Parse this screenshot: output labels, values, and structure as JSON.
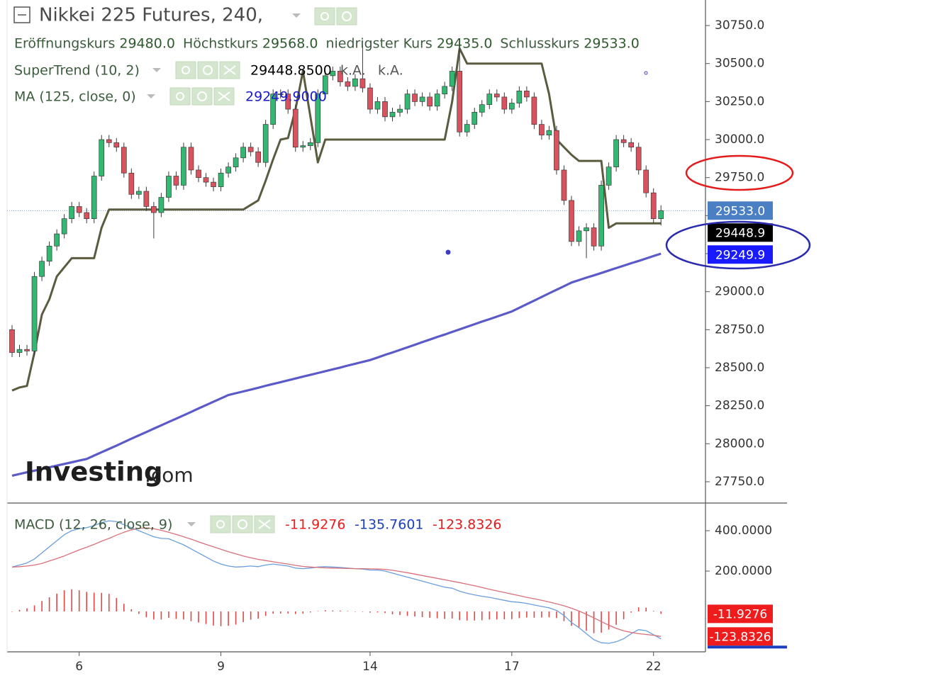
{
  "chart_data": [
    {
      "type": "candlestick",
      "title": "Nikkei 225 Futures, 240,",
      "ohlc_legend": {
        "labels": [
          "Eröffnungskurs",
          "Höchstkurs",
          "niedrigster Kurs",
          "Schlusskurs"
        ],
        "value_labels": [
          "29480.0",
          "29568.0",
          "29435.0",
          "29533.0"
        ]
      },
      "categories": [
        null,
        null,
        null,
        null,
        null,
        null,
        null,
        null,
        null,
        "6",
        null,
        null,
        null,
        null,
        null,
        null,
        null,
        null,
        null,
        null,
        null,
        null,
        null,
        null,
        null,
        null,
        null,
        null,
        "9",
        null,
        null,
        null,
        null,
        null,
        null,
        null,
        null,
        null,
        null,
        null,
        null,
        null,
        null,
        null,
        null,
        null,
        null,
        null,
        "14",
        null,
        null,
        null,
        null,
        null,
        null,
        null,
        null,
        null,
        null,
        null,
        null,
        null,
        null,
        null,
        null,
        null,
        null,
        "17",
        null,
        null,
        null,
        null,
        null,
        null,
        null,
        null,
        null,
        null,
        null,
        null,
        null,
        null,
        null,
        null,
        null,
        null,
        "22",
        null
      ],
      "open": [
        28750,
        28600,
        28620,
        28610,
        29100,
        29200,
        29300,
        29380,
        29480,
        29560,
        29520,
        29480,
        29760,
        30000,
        29980,
        29950,
        29780,
        29640,
        29660,
        29560,
        29520,
        29620,
        29760,
        29700,
        29950,
        29800,
        29750,
        29720,
        29690,
        29780,
        29820,
        29880,
        29950,
        29920,
        29850,
        30100,
        30300,
        30300,
        30200,
        29950,
        29960,
        29980,
        30300,
        30420,
        30450,
        30380,
        30350,
        30400,
        30340,
        30200,
        30250,
        30150,
        30180,
        30200,
        30300,
        30250,
        30280,
        30220,
        30300,
        30350,
        30450,
        30050,
        30100,
        30180,
        30230,
        30300,
        30280,
        30200,
        30240,
        30320,
        30280,
        30100,
        30030,
        30060,
        29800,
        29600,
        29330,
        29400,
        29420,
        29300,
        29700,
        29820,
        30000,
        29980,
        29950,
        29800,
        29650,
        29480
      ],
      "high": [
        28780,
        28650,
        28650,
        29130,
        29230,
        29330,
        29410,
        29510,
        29590,
        29590,
        29550,
        29790,
        30030,
        30030,
        30010,
        29980,
        29810,
        29690,
        29690,
        29590,
        29650,
        29790,
        29790,
        29980,
        29980,
        29830,
        29780,
        29750,
        29810,
        29850,
        29910,
        29980,
        29980,
        29950,
        30130,
        30330,
        30330,
        30330,
        30230,
        29990,
        30010,
        30330,
        30450,
        30480,
        30480,
        30410,
        30430,
        30620,
        30370,
        30280,
        30280,
        30210,
        30230,
        30330,
        30330,
        30310,
        30310,
        30330,
        30380,
        30480,
        30600,
        30130,
        30210,
        30260,
        30330,
        30330,
        30310,
        30270,
        30350,
        30350,
        30310,
        30130,
        30090,
        30090,
        29830,
        29630,
        29430,
        29450,
        29450,
        29730,
        29850,
        30030,
        30030,
        30010,
        29980,
        29830,
        29680,
        29568
      ],
      "low": [
        28570,
        28570,
        28580,
        28580,
        29070,
        29170,
        29270,
        29350,
        29450,
        29490,
        29450,
        29450,
        29730,
        29950,
        29920,
        29750,
        29610,
        29610,
        29530,
        29350,
        29490,
        29590,
        29670,
        29670,
        29770,
        29720,
        29690,
        29660,
        29660,
        29750,
        29790,
        29850,
        29890,
        29820,
        29820,
        30070,
        30270,
        30170,
        29920,
        29920,
        29930,
        29950,
        30270,
        30390,
        30350,
        30320,
        30320,
        30310,
        30170,
        30170,
        30120,
        30120,
        30150,
        30170,
        30220,
        30220,
        30190,
        30190,
        30270,
        30320,
        30020,
        30020,
        30070,
        30150,
        30200,
        30250,
        30170,
        30170,
        30210,
        30250,
        30070,
        30000,
        30000,
        29770,
        29570,
        29300,
        29300,
        29220,
        29270,
        29270,
        29670,
        29790,
        29950,
        29920,
        29770,
        29620,
        29450,
        29435
      ],
      "close": [
        28600,
        28620,
        28610,
        29100,
        29200,
        29300,
        29380,
        29480,
        29560,
        29520,
        29480,
        29760,
        30000,
        29980,
        29950,
        29780,
        29640,
        29660,
        29560,
        29520,
        29620,
        29760,
        29700,
        29950,
        29800,
        29750,
        29720,
        29690,
        29780,
        29820,
        29880,
        29950,
        29920,
        29850,
        30100,
        30300,
        30300,
        30200,
        29950,
        29960,
        29980,
        30300,
        30420,
        30450,
        30380,
        30350,
        30400,
        30340,
        30200,
        30250,
        30150,
        30180,
        30200,
        30300,
        30250,
        30280,
        30220,
        30300,
        30350,
        30450,
        30050,
        30100,
        30180,
        30230,
        30300,
        30280,
        30200,
        30240,
        30320,
        30280,
        30100,
        30030,
        30060,
        29800,
        29600,
        29330,
        29400,
        29420,
        29300,
        29700,
        29820,
        30000,
        29980,
        29950,
        29800,
        29650,
        29480,
        29533
      ],
      "close_label": "29533.0",
      "up_color": "#33b872",
      "down_color": "#d9525e",
      "close_line_color": "#4a7fc4",
      "series": [
        {
          "name": "SuperTrend (10, 2)",
          "color": "#5b5b40",
          "tag_color": "#000000",
          "value_label": "29448.8500",
          "status_labels": [
            "k.A.",
            "k.A."
          ],
          "last_label": "29448.9",
          "values": [
            28350,
            28370,
            28380,
            28600,
            28850,
            28950,
            29100,
            29160,
            29220,
            29220,
            29220,
            29220,
            29420,
            29540,
            29540,
            29540,
            29540,
            29540,
            29540,
            29540,
            29540,
            29540,
            29540,
            29540,
            29540,
            29540,
            29540,
            29540,
            29540,
            29540,
            29540,
            29540,
            29570,
            29600,
            29730,
            29870,
            30000,
            30010,
            30200,
            30450,
            30150,
            29850,
            30000,
            30000,
            30000,
            30000,
            30000,
            30000,
            30000,
            30000,
            30000,
            30000,
            30000,
            30000,
            30000,
            30000,
            30000,
            30000,
            30000,
            30250,
            30600,
            30500,
            30500,
            30500,
            30500,
            30500,
            30500,
            30500,
            30500,
            30500,
            30500,
            30500,
            30300,
            30000,
            29950,
            29900,
            29860,
            29860,
            29860,
            29860,
            29420,
            29448.85,
            29448.85,
            29448.85,
            29448.85,
            29448.85,
            29448.85,
            29448.85
          ]
        },
        {
          "name": "MA (125, close, 0)",
          "color": "#5a5ac8",
          "tag_color": "#1a1aff",
          "value_label": "29249.9000",
          "last_label": "29249.9",
          "values": [
            27790,
            27801,
            27812,
            27823,
            27834,
            27845,
            27856,
            27867,
            27878,
            27889,
            27900,
            27922,
            27944,
            27966,
            27988,
            28010,
            28033,
            28055,
            28077,
            28099,
            28121,
            28143,
            28165,
            28187,
            28209,
            28232,
            28254,
            28276,
            28298,
            28320,
            28332,
            28344,
            28356,
            28368,
            28381,
            28393,
            28405,
            28417,
            28429,
            28441,
            28453,
            28465,
            28477,
            28489,
            28501,
            28514,
            28526,
            28538,
            28550,
            28567,
            28584,
            28600,
            28617,
            28634,
            28651,
            28668,
            28685,
            28702,
            28718,
            28735,
            28752,
            28769,
            28786,
            28803,
            28819,
            28836,
            28853,
            28870,
            28894,
            28918,
            28941,
            28965,
            28989,
            29013,
            29036,
            29060,
            29076,
            29092,
            29107,
            29123,
            29139,
            29155,
            29171,
            29187,
            29202,
            29218,
            29234,
            29249.9
          ]
        }
      ],
      "ylim": [
        27610,
        30918
      ],
      "yticks": [
        {
          "value": 27750,
          "label": "27750.0"
        },
        {
          "value": 28000,
          "label": "28000.0"
        },
        {
          "value": 28250,
          "label": "28250.0"
        },
        {
          "value": 28500,
          "label": "28500.0"
        },
        {
          "value": 28750,
          "label": "28750.0"
        },
        {
          "value": 29000,
          "label": "29000.0"
        },
        {
          "value": 29250,
          "label": "29250.0"
        },
        {
          "value": 29500,
          "label": "29500.0"
        },
        {
          "value": 29750,
          "label": "29750.0"
        },
        {
          "value": 30000,
          "label": "30000.0"
        },
        {
          "value": 30250,
          "label": "30250.0"
        },
        {
          "value": 30500,
          "label": "30500.0"
        },
        {
          "value": 30750,
          "label": "30750.0"
        }
      ],
      "grid": false,
      "watermark": [
        "Investing",
        ".com"
      ]
    },
    {
      "type": "macd",
      "title": "MACD (12, 26, close, 9)",
      "histogram": {
        "color": "#e04848",
        "tag_color": "#ee1c1c",
        "value_label": "-11.9276",
        "last_label": "-11.9276",
        "values": [
          0,
          8,
          15,
          30,
          52,
          70,
          88,
          105,
          110,
          105,
          97,
          93,
          92,
          87,
          67,
          38,
          11,
          -12,
          -29,
          -40,
          -40,
          -32,
          -37,
          -40,
          -48,
          -55,
          -62,
          -70,
          -73,
          -71,
          -65,
          -53,
          -41,
          -36,
          -22,
          -11,
          -10,
          -10,
          -13,
          -11,
          -5,
          2,
          6,
          5,
          4,
          2,
          0,
          -2,
          -6,
          -5,
          -8,
          -14,
          -18,
          -22,
          -25,
          -28,
          -31,
          -34,
          -37,
          -35,
          -43,
          -45,
          -45,
          -44,
          -40,
          -40,
          -39,
          -38,
          -33,
          -30,
          -31,
          -30,
          -29,
          -33,
          -48,
          -71,
          -82,
          -96,
          -108,
          -105,
          -90,
          -66,
          -39,
          -6,
          20,
          19,
          3,
          -11.9276
        ]
      },
      "series": [
        {
          "color": "#6a9fdc",
          "label_color": "#1a3fbf",
          "value_label": "-135.7601",
          "values": [
            220,
            230,
            240,
            260,
            290,
            320,
            350,
            380,
            400,
            410,
            415,
            425,
            440,
            449,
            445,
            430,
            415,
            400,
            385,
            370,
            362,
            360,
            345,
            330,
            310,
            290,
            270,
            250,
            235,
            225,
            220,
            222,
            225,
            222,
            230,
            235,
            230,
            225,
            215,
            212,
            215,
            220,
            222,
            220,
            218,
            215,
            212,
            210,
            205,
            205,
            200,
            190,
            180,
            170,
            160,
            150,
            140,
            130,
            120,
            115,
            100,
            90,
            82,
            75,
            70,
            62,
            55,
            48,
            45,
            40,
            32,
            25,
            18,
            5,
            -20,
            -55,
            -80,
            -110,
            -140,
            -155,
            -158,
            -150,
            -135,
            -110,
            -90,
            -95,
            -115,
            -135.7601
          ]
        },
        {
          "color": "#d9707a",
          "label_color": "#e01b1b",
          "tag_color": "#ee1c1c",
          "value_label": "-123.8326",
          "last_label": "-123.8326",
          "values": [
            220,
            222,
            225,
            230,
            238,
            250,
            262,
            275,
            290,
            305,
            318,
            332,
            348,
            362,
            378,
            392,
            404,
            412,
            414,
            410,
            402,
            392,
            382,
            370,
            358,
            345,
            332,
            320,
            308,
            296,
            285,
            275,
            266,
            258,
            252,
            246,
            240,
            235,
            228,
            223,
            220,
            218,
            216,
            215,
            214,
            213,
            212,
            212,
            211,
            210,
            208,
            204,
            198,
            192,
            185,
            178,
            171,
            164,
            157,
            150,
            143,
            135,
            127,
            119,
            110,
            102,
            94,
            86,
            78,
            70,
            63,
            55,
            47,
            38,
            28,
            16,
            2,
            -14,
            -32,
            -50,
            -68,
            -84,
            -96,
            -104,
            -110,
            -114,
            -118,
            -123.8326
          ]
        }
      ],
      "ylim": [
        -200,
        530
      ],
      "yticks": [
        {
          "value": 200,
          "label": "200.0000"
        },
        {
          "value": 400,
          "label": "400.0000"
        }
      ],
      "grid": false
    }
  ]
}
